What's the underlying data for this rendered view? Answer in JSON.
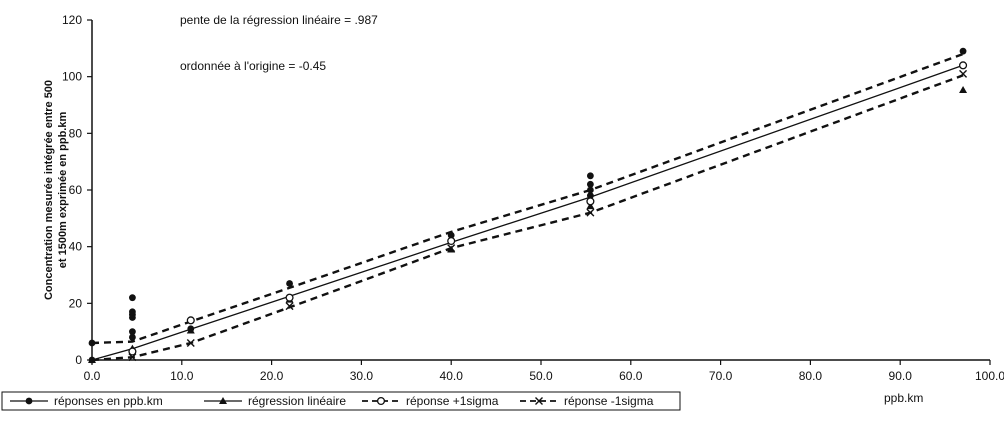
{
  "chart_data": {
    "type": "scatter",
    "title": "",
    "annotations": [
      "pente de la régression linéaire = .987",
      "ordonnée à l'origine  =  -0.45"
    ],
    "ylabel_line1": "Concentration mesurée intégrée entre 500",
    "ylabel_line2": "et 1500m exprimée en ppb.km",
    "xlabel": "ppb.km",
    "xlim": [
      0,
      100
    ],
    "ylim": [
      0,
      120
    ],
    "x_ticks": [
      "0.0",
      "10.0",
      "20.0",
      "30.0",
      "40.0",
      "50.0",
      "60.0",
      "70.0",
      "80.0",
      "90.0",
      "100.0"
    ],
    "y_ticks": [
      "0",
      "20",
      "40",
      "60",
      "80",
      "100",
      "120"
    ],
    "legend_position": "bottom-left",
    "series": [
      {
        "name": "réponses en ppb.km",
        "style": "line-filled-circle",
        "color": "#111111",
        "points": [
          [
            0,
            0
          ],
          [
            0,
            6
          ],
          [
            4.5,
            8
          ],
          [
            4.5,
            10
          ],
          [
            4.5,
            15
          ],
          [
            4.5,
            16
          ],
          [
            4.5,
            17
          ],
          [
            4.5,
            22
          ],
          [
            11,
            11
          ],
          [
            22,
            27
          ],
          [
            40,
            44
          ],
          [
            55.5,
            58
          ],
          [
            55.5,
            60
          ],
          [
            55.5,
            62
          ],
          [
            55.5,
            65
          ],
          [
            97,
            109
          ]
        ]
      },
      {
        "name": "régression linéaire",
        "style": "line-triangle",
        "color": "#111111",
        "points": [
          [
            0,
            0
          ],
          [
            4.5,
            4.0
          ],
          [
            11,
            10.4
          ],
          [
            22,
            21.3
          ],
          [
            40,
            39.0
          ],
          [
            55.5,
            54.3
          ],
          [
            97,
            95.3
          ]
        ],
        "line": [
          [
            0,
            0
          ],
          [
            4.5,
            4.0
          ],
          [
            11,
            10.9
          ],
          [
            22,
            22.5
          ],
          [
            40,
            41.5
          ],
          [
            55.5,
            57.5
          ],
          [
            97,
            104
          ]
        ]
      },
      {
        "name": "réponse +1sigma",
        "style": "dashed-open-circle",
        "color": "#111111",
        "points": [
          [
            4.5,
            3
          ],
          [
            11,
            14
          ],
          [
            22,
            22
          ],
          [
            40,
            42
          ],
          [
            55.5,
            56
          ],
          [
            97,
            104
          ]
        ],
        "line": [
          [
            0,
            6
          ],
          [
            4.5,
            6.5
          ],
          [
            11,
            13.6
          ],
          [
            22,
            25.5
          ],
          [
            40,
            45.2
          ],
          [
            55.5,
            60
          ],
          [
            97,
            108
          ]
        ]
      },
      {
        "name": "réponse -1sigma",
        "style": "dashed-x",
        "color": "#111111",
        "points": [
          [
            4.5,
            1
          ],
          [
            11,
            6
          ],
          [
            22,
            19
          ],
          [
            40,
            39.5
          ],
          [
            55.5,
            52
          ],
          [
            97,
            101
          ]
        ],
        "line": [
          [
            0,
            -1
          ],
          [
            4.5,
            1
          ],
          [
            11,
            6
          ],
          [
            22,
            18.6
          ],
          [
            40,
            39.5
          ],
          [
            55.5,
            52
          ],
          [
            97,
            100.5
          ]
        ]
      }
    ]
  }
}
